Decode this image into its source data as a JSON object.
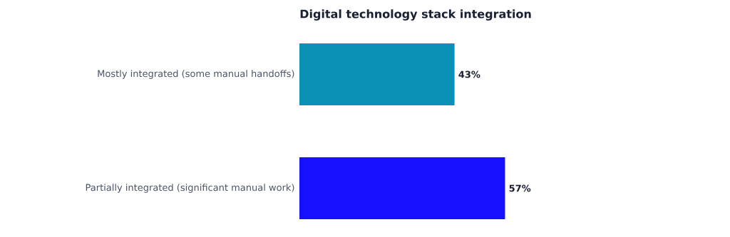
{
  "chart_data": {
    "type": "bar",
    "orientation": "horizontal",
    "title": "Digital technology stack integration",
    "categories": [
      "Mostly integrated (some manual handoffs)",
      "Partially integrated (significant manual work)"
    ],
    "values": [
      43,
      57
    ],
    "colors": [
      "#0a91b5",
      "#1510ff"
    ],
    "value_labels": [
      "43%",
      "57%"
    ],
    "tick_labels": "y"
  }
}
